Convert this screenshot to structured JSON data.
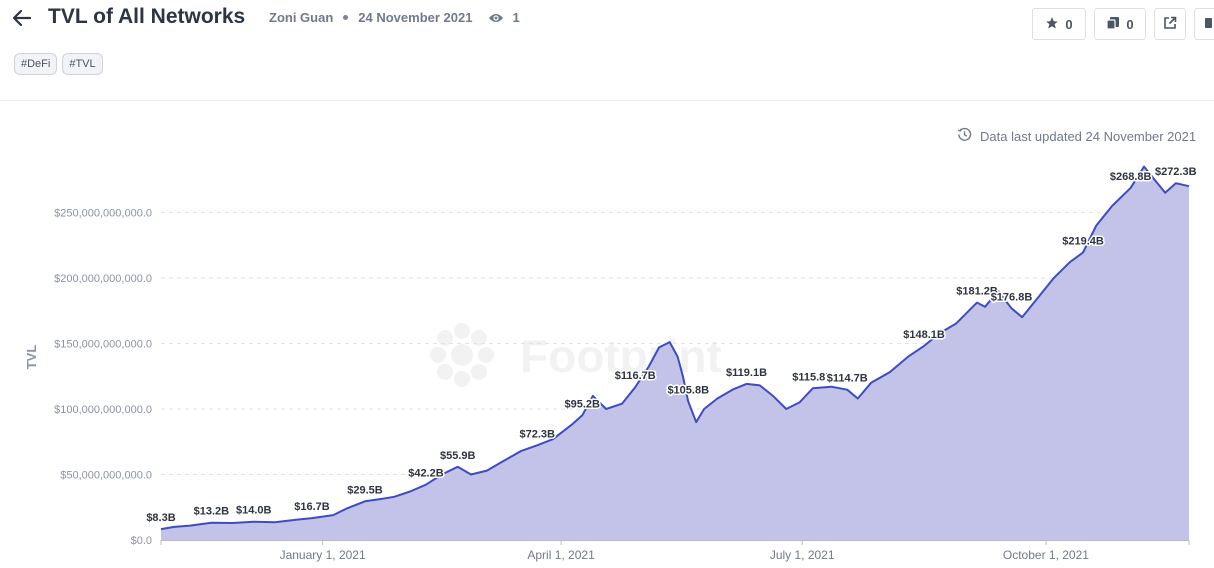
{
  "header": {
    "title": "TVL of All Networks",
    "author": "Zoni Guan",
    "date": "24 November 2021",
    "views": "1"
  },
  "tags": [
    "#DeFi",
    "#TVL"
  ],
  "actions": {
    "stars": "0",
    "copies": "0"
  },
  "updated": "Data last updated 24 November 2021",
  "watermark": "Footprint",
  "icons": [
    "back-arrow-icon",
    "eye-icon",
    "star-icon",
    "copy-icon",
    "external-link-icon",
    "clock-icon"
  ],
  "colors": {
    "line": "#3f4cbf",
    "fill": "#c3c3ea",
    "label_text": "#2e3440"
  },
  "chart_data": {
    "type": "area",
    "ylabel": "TVL",
    "xlabel": "",
    "ylim": [
      0,
      290000000000
    ],
    "yticks": [
      0,
      50000000000,
      100000000000,
      150000000000,
      200000000000,
      250000000000
    ],
    "ytick_labels": [
      "$0.0",
      "$50,000,000,000.0",
      "$100,000,000,000.0",
      "$150,000,000,000.0",
      "$200,000,000,000.0",
      "$250,000,000,000.0"
    ],
    "xlim": [
      "2020-11-01",
      "2021-11-24"
    ],
    "xticks": [
      "2021-01-01",
      "2021-04-01",
      "2021-07-01",
      "2021-10-01"
    ],
    "xtick_labels": [
      "January 1, 2021",
      "April 1, 2021",
      "July 1, 2021",
      "October 1, 2021"
    ],
    "series": [
      {
        "points": [
          [
            "2020-11-01",
            8300000000.0
          ],
          [
            "2020-11-06",
            10000000000.0
          ],
          [
            "2020-11-12",
            11000000000.0
          ],
          [
            "2020-11-20",
            13200000000.0
          ],
          [
            "2020-11-28",
            13000000000.0
          ],
          [
            "2020-12-06",
            14000000000.0
          ],
          [
            "2020-12-14",
            13500000000.0
          ],
          [
            "2020-12-22",
            15500000000.0
          ],
          [
            "2020-12-28",
            16700000000.0
          ],
          [
            "2021-01-05",
            19000000000.0
          ],
          [
            "2021-01-10",
            24000000000.0
          ],
          [
            "2021-01-17",
            29500000000.0
          ],
          [
            "2021-01-22",
            31000000000.0
          ],
          [
            "2021-01-28",
            33000000000.0
          ],
          [
            "2021-02-03",
            37000000000.0
          ],
          [
            "2021-02-09",
            42200000000.0
          ],
          [
            "2021-02-15",
            50000000000.0
          ],
          [
            "2021-02-21",
            55900000000.0
          ],
          [
            "2021-02-26",
            50000000000.0
          ],
          [
            "2021-03-04",
            53000000000.0
          ],
          [
            "2021-03-10",
            60000000000.0
          ],
          [
            "2021-03-17",
            68000000000.0
          ],
          [
            "2021-03-23",
            72300000000.0
          ],
          [
            "2021-03-29",
            77000000000.0
          ],
          [
            "2021-04-05",
            88000000000.0
          ],
          [
            "2021-04-09",
            95200000000.0
          ],
          [
            "2021-04-13",
            110000000000.0
          ],
          [
            "2021-04-18",
            100000000000.0
          ],
          [
            "2021-04-24",
            104000000000.0
          ],
          [
            "2021-04-29",
            116700000000.0
          ],
          [
            "2021-05-04",
            132000000000.0
          ],
          [
            "2021-05-08",
            147000000000.0
          ],
          [
            "2021-05-12",
            151000000000.0
          ],
          [
            "2021-05-15",
            140000000000.0
          ],
          [
            "2021-05-17",
            125000000000.0
          ],
          [
            "2021-05-19",
            105800000000.0
          ],
          [
            "2021-05-22",
            90000000000.0
          ],
          [
            "2021-05-25",
            100000000000.0
          ],
          [
            "2021-05-30",
            108000000000.0
          ],
          [
            "2021-06-05",
            115000000000.0
          ],
          [
            "2021-06-10",
            119100000000.0
          ],
          [
            "2021-06-15",
            118000000000.0
          ],
          [
            "2021-06-20",
            110000000000.0
          ],
          [
            "2021-06-25",
            100000000000.0
          ],
          [
            "2021-06-30",
            105000000000.0
          ],
          [
            "2021-07-05",
            115800000000.0
          ],
          [
            "2021-07-12",
            117000000000.0
          ],
          [
            "2021-07-18",
            114700000000.0
          ],
          [
            "2021-07-22",
            108000000000.0
          ],
          [
            "2021-07-27",
            120000000000.0
          ],
          [
            "2021-08-03",
            128000000000.0
          ],
          [
            "2021-08-10",
            140000000000.0
          ],
          [
            "2021-08-16",
            148100000000.0
          ],
          [
            "2021-08-22",
            158000000000.0
          ],
          [
            "2021-08-28",
            165000000000.0
          ],
          [
            "2021-09-05",
            181200000000.0
          ],
          [
            "2021-09-08",
            178000000000.0
          ],
          [
            "2021-09-13",
            190000000000.0
          ],
          [
            "2021-09-18",
            176800000000.0
          ],
          [
            "2021-09-22",
            170000000000.0
          ],
          [
            "2021-09-28",
            185000000000.0
          ],
          [
            "2021-10-04",
            200000000000.0
          ],
          [
            "2021-10-10",
            212000000000.0
          ],
          [
            "2021-10-15",
            219400000000.0
          ],
          [
            "2021-10-20",
            240000000000.0
          ],
          [
            "2021-10-26",
            255000000000.0
          ],
          [
            "2021-11-02",
            268800000000.0
          ],
          [
            "2021-11-07",
            285000000000.0
          ],
          [
            "2021-11-11",
            275000000000.0
          ],
          [
            "2021-11-15",
            265000000000.0
          ],
          [
            "2021-11-19",
            272300000000.0
          ],
          [
            "2021-11-24",
            270000000000.0
          ]
        ]
      }
    ],
    "annotations": [
      {
        "x": "2020-11-01",
        "y": 8300000000.0,
        "text": "$8.3B"
      },
      {
        "x": "2020-11-20",
        "y": 13200000000.0,
        "text": "$13.2B"
      },
      {
        "x": "2020-12-06",
        "y": 14000000000.0,
        "text": "$14.0B"
      },
      {
        "x": "2020-12-28",
        "y": 16700000000.0,
        "text": "$16.7B"
      },
      {
        "x": "2021-01-17",
        "y": 29500000000.0,
        "text": "$29.5B"
      },
      {
        "x": "2021-02-09",
        "y": 42200000000.0,
        "text": "$42.2B"
      },
      {
        "x": "2021-02-21",
        "y": 55900000000.0,
        "text": "$55.9B"
      },
      {
        "x": "2021-03-23",
        "y": 72300000000.0,
        "text": "$72.3B"
      },
      {
        "x": "2021-04-09",
        "y": 95200000000.0,
        "text": "$95.2B"
      },
      {
        "x": "2021-04-29",
        "y": 116700000000.0,
        "text": "$116.7B"
      },
      {
        "x": "2021-05-19",
        "y": 105800000000.0,
        "text": "$105.8B"
      },
      {
        "x": "2021-06-10",
        "y": 119100000000.0,
        "text": "$119.1B"
      },
      {
        "x": "2021-07-05",
        "y": 115800000000.0,
        "text": "$115.8B"
      },
      {
        "x": "2021-07-18",
        "y": 114700000000.0,
        "text": "$114.7B"
      },
      {
        "x": "2021-08-16",
        "y": 148100000000.0,
        "text": "$148.1B"
      },
      {
        "x": "2021-09-05",
        "y": 181200000000.0,
        "text": "$181.2B"
      },
      {
        "x": "2021-09-18",
        "y": 176800000000.0,
        "text": "$176.8B"
      },
      {
        "x": "2021-10-15",
        "y": 219400000000.0,
        "text": "$219.4B"
      },
      {
        "x": "2021-11-02",
        "y": 268800000000.0,
        "text": "$268.8B"
      },
      {
        "x": "2021-11-19",
        "y": 272300000000.0,
        "text": "$272.3B"
      }
    ],
    "grid": true,
    "legend": "none"
  }
}
